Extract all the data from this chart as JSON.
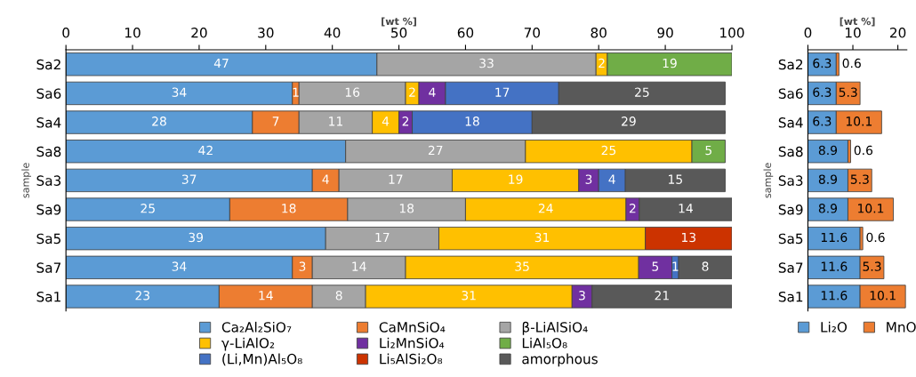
{
  "chart_data": [
    {
      "type": "bar",
      "orientation": "horizontal",
      "stacked": true,
      "xlabel": "[wt %]",
      "ylabel": "sample",
      "categories": [
        "Sa2",
        "Sa6",
        "Sa4",
        "Sa8",
        "Sa3",
        "Sa9",
        "Sa5",
        "Sa7",
        "Sa1"
      ],
      "xlim": [
        0,
        100
      ],
      "xticks": [
        0,
        10,
        20,
        30,
        40,
        50,
        60,
        70,
        80,
        90,
        100
      ],
      "grid": false,
      "legend": "bottom",
      "series": [
        {
          "name": "Ca₂Al₂SiO₇",
          "color": "#5b9bd5",
          "values": [
            46.7,
            34,
            28,
            42,
            37,
            24.6,
            39,
            34,
            23
          ],
          "value_labels": [
            "47",
            "34",
            "28",
            "42",
            "37",
            "25",
            "39",
            "34",
            "23"
          ]
        },
        {
          "name": "CaMnSiO₄",
          "color": "#ed7d31",
          "values": [
            null,
            1,
            7,
            null,
            4,
            17.7,
            null,
            3,
            14
          ],
          "value_labels": [
            null,
            "1",
            "7",
            null,
            "4",
            "18",
            null,
            "3",
            "14"
          ]
        },
        {
          "name": "β-LiAlSiO₄",
          "color": "#a5a5a5",
          "values": [
            32.9,
            16,
            11,
            27,
            17,
            17.7,
            17,
            14,
            8
          ],
          "value_labels": [
            "33",
            "16",
            "11",
            "27",
            "17",
            "18",
            "17",
            "14",
            "8"
          ]
        },
        {
          "name": "γ-LiAlO₂",
          "color": "#ffc000",
          "values": [
            1.7,
            2,
            4,
            25,
            19,
            24.1,
            31,
            35,
            31
          ],
          "value_labels": [
            "2",
            "2",
            "4",
            "25",
            "19",
            "24",
            "31",
            "35",
            "31"
          ]
        },
        {
          "name": "Li₂MnSiO₄",
          "color": "#7030a0",
          "values": [
            null,
            4,
            2,
            null,
            3,
            2.0,
            null,
            5,
            3
          ],
          "value_labels": [
            null,
            "4",
            "2",
            null,
            "3",
            "2",
            null,
            "5",
            "3"
          ]
        },
        {
          "name": "LiAl₅O₈",
          "color": "#70ad47",
          "values": [
            18.7,
            null,
            null,
            5,
            null,
            null,
            null,
            null,
            null
          ],
          "value_labels": [
            "19",
            null,
            null,
            "5",
            null,
            null,
            null,
            null,
            null
          ]
        },
        {
          "name": "(Li,Mn)Al₅O₈",
          "color": "#4472c4",
          "values": [
            null,
            17,
            18,
            null,
            4,
            null,
            null,
            1,
            null
          ],
          "value_labels": [
            null,
            "17",
            "18",
            null,
            "4",
            null,
            null,
            "1",
            null
          ]
        },
        {
          "name": "Li₅AlSi₂O₈",
          "color": "#cc3300",
          "values": [
            null,
            null,
            null,
            null,
            null,
            null,
            13,
            null,
            null
          ],
          "value_labels": [
            null,
            null,
            null,
            null,
            null,
            null,
            "13",
            null,
            null
          ]
        },
        {
          "name": "amorphous",
          "color": "#595959",
          "values": [
            null,
            25,
            29,
            null,
            15,
            13.9,
            null,
            8,
            21
          ],
          "value_labels": [
            null,
            "25",
            "29",
            null,
            "15",
            "14",
            null,
            "8",
            "21"
          ]
        }
      ]
    },
    {
      "type": "bar",
      "orientation": "horizontal",
      "stacked": true,
      "xlabel": "[wt %]",
      "ylabel": "sample",
      "categories": [
        "Sa2",
        "Sa6",
        "Sa4",
        "Sa8",
        "Sa3",
        "Sa9",
        "Sa5",
        "Sa7",
        "Sa1"
      ],
      "xlim": [
        0,
        22
      ],
      "xticks": [
        0,
        10,
        20
      ],
      "grid": false,
      "legend": "bottom",
      "data_labels": true,
      "series": [
        {
          "name": "Li₂O",
          "color": "#5b9bd5",
          "values": [
            6.3,
            6.3,
            6.3,
            8.9,
            8.9,
            8.9,
            11.6,
            11.6,
            11.6
          ]
        },
        {
          "name": "MnO",
          "color": "#ed7d31",
          "values": [
            0.6,
            5.3,
            10.1,
            0.6,
            5.3,
            10.1,
            0.6,
            5.3,
            10.1
          ]
        }
      ]
    }
  ]
}
